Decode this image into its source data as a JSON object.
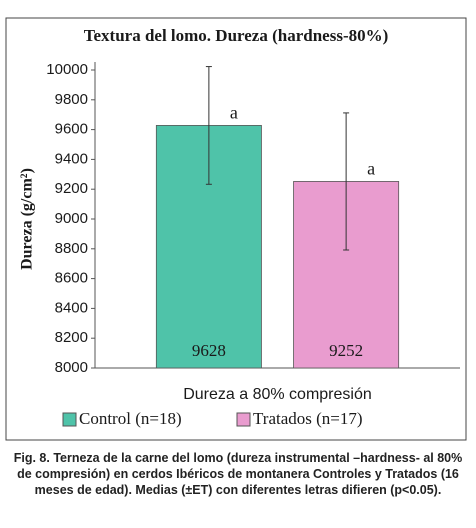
{
  "chart_data": {
    "type": "bar",
    "title": "Textura del lomo. Dureza (hardness-80%)",
    "y_label": "Dureza (g/cm²)",
    "categories": [
      "Dureza a 80% compresión"
    ],
    "series": [
      {
        "name": "Control (n=18)",
        "color": "#4fc3a9",
        "values": [
          9628
        ],
        "errors": [
          395
        ],
        "letters": [
          "a"
        ]
      },
      {
        "name": "Tratados (n=17)",
        "color": "#e99ccf",
        "values": [
          9252
        ],
        "errors": [
          460
        ],
        "letters": [
          "a"
        ]
      }
    ],
    "ylim": [
      8000,
      10000
    ],
    "yticks": [
      8000,
      8200,
      8400,
      8600,
      8800,
      9000,
      9200,
      9400,
      9600,
      9800,
      10000
    ],
    "grid": false,
    "legend": "bottom"
  },
  "caption": "Fig. 8. Terneza de la carne del lomo (dureza instrumental –hardness- al 80% de compresión) en cerdos Ibéricos de montanera Controles y Tratados (16 meses de edad). Medias (±ET) con diferentes letras difieren (p<0.05)."
}
